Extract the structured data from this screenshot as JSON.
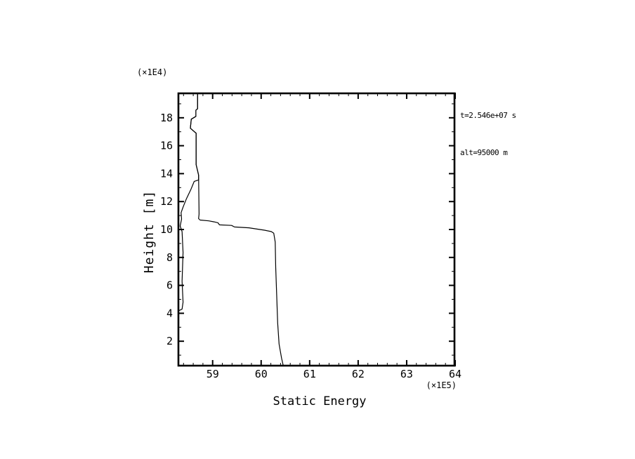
{
  "colors": {
    "background": "#ffffff",
    "foreground": "#000000"
  },
  "chart_data": {
    "type": "line",
    "title": "",
    "xlabel": "Static Energy",
    "x_scale_note": "(×1E5)",
    "ylabel": "Height [m]",
    "y_scale_note": "(×1E4)",
    "xlim": [
      58.28,
      64.0
    ],
    "ylim": [
      0.2,
      19.8
    ],
    "x_major_ticks": [
      59,
      60,
      61,
      62,
      63,
      64
    ],
    "x_major_tick_labels": [
      "59",
      "60",
      "61",
      "62",
      "63",
      "64"
    ],
    "x_minor_step": 0.2,
    "y_major_ticks": [
      2,
      4,
      6,
      8,
      10,
      12,
      14,
      16,
      18
    ],
    "y_major_tick_labels": [
      "2",
      "4",
      "6",
      "8",
      "10",
      "12",
      "14",
      "16",
      "18"
    ],
    "y_minor_step": 1,
    "grid": false,
    "ticks": "inward, all four sides of frame",
    "legend": "none",
    "annotations": [
      "t=2.546e+07 s",
      "alt=95000 m"
    ],
    "units_note": "x values in 1E5 (J/kg), y values in 1E4 m",
    "series": [
      {
        "name": "static-energy-profile-main",
        "color": "#000000",
        "points": [
          [
            58.69,
            19.8
          ],
          [
            58.69,
            18.65
          ],
          [
            58.655,
            18.55
          ],
          [
            58.655,
            18.1
          ],
          [
            58.56,
            17.9
          ],
          [
            58.54,
            17.25
          ],
          [
            58.63,
            16.98
          ],
          [
            58.66,
            16.9
          ],
          [
            58.66,
            14.65
          ],
          [
            58.71,
            13.9
          ],
          [
            58.72,
            11.1
          ],
          [
            58.71,
            10.78
          ],
          [
            58.74,
            10.68
          ],
          [
            58.92,
            10.62
          ],
          [
            59.03,
            10.55
          ],
          [
            59.11,
            10.48
          ],
          [
            59.14,
            10.33
          ],
          [
            59.39,
            10.29
          ],
          [
            59.45,
            10.18
          ],
          [
            59.75,
            10.12
          ],
          [
            60.07,
            9.95
          ],
          [
            60.21,
            9.85
          ],
          [
            60.26,
            9.74
          ],
          [
            60.29,
            9.1
          ],
          [
            60.3,
            7.3
          ],
          [
            60.32,
            5.3
          ],
          [
            60.34,
            3.3
          ],
          [
            60.37,
            1.8
          ],
          [
            60.42,
            0.8
          ],
          [
            60.46,
            0.2
          ]
        ]
      },
      {
        "name": "static-energy-profile-secondary",
        "color": "#000000",
        "points": [
          [
            58.69,
            19.8
          ],
          [
            58.69,
            18.65
          ],
          [
            58.655,
            18.55
          ],
          [
            58.655,
            18.1
          ],
          [
            58.56,
            17.9
          ],
          [
            58.54,
            17.25
          ],
          [
            58.63,
            16.98
          ],
          [
            58.66,
            16.9
          ],
          [
            58.66,
            14.65
          ],
          [
            58.71,
            13.9
          ],
          [
            58.71,
            13.55
          ],
          [
            58.62,
            13.45
          ],
          [
            58.55,
            12.85
          ],
          [
            58.46,
            12.2
          ],
          [
            58.39,
            11.6
          ],
          [
            58.35,
            11.2
          ],
          [
            58.36,
            10.75
          ],
          [
            58.33,
            10.25
          ],
          [
            58.37,
            9.85
          ],
          [
            58.39,
            8.35
          ],
          [
            58.37,
            6.3
          ],
          [
            58.39,
            4.8
          ],
          [
            58.37,
            4.3
          ],
          [
            58.28,
            4.15
          ]
        ]
      }
    ]
  }
}
